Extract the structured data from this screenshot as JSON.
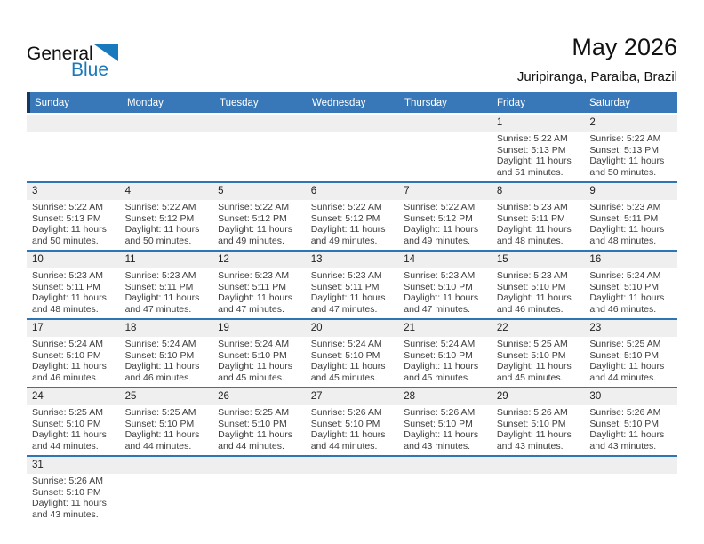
{
  "logo": {
    "part1": "General",
    "part2": "Blue",
    "triangle_color": "#1879bd"
  },
  "header": {
    "title": "May 2026",
    "location": "Juripiranga, Paraiba, Brazil"
  },
  "colors": {
    "weekday_bar": "#3878b8",
    "weekday_bar_accent": "#17375e",
    "week_separator": "#2e75b6",
    "day_number_strip": "#efefef",
    "logo_blue": "#1879bd"
  },
  "weekdays": [
    "Sunday",
    "Monday",
    "Tuesday",
    "Wednesday",
    "Thursday",
    "Friday",
    "Saturday"
  ],
  "weeks": [
    [
      null,
      null,
      null,
      null,
      null,
      {
        "n": "1",
        "lines": [
          "Sunrise: 5:22 AM",
          "Sunset: 5:13 PM",
          "Daylight: 11 hours",
          "and 51 minutes."
        ]
      },
      {
        "n": "2",
        "lines": [
          "Sunrise: 5:22 AM",
          "Sunset: 5:13 PM",
          "Daylight: 11 hours",
          "and 50 minutes."
        ]
      }
    ],
    [
      {
        "n": "3",
        "lines": [
          "Sunrise: 5:22 AM",
          "Sunset: 5:13 PM",
          "Daylight: 11 hours",
          "and 50 minutes."
        ]
      },
      {
        "n": "4",
        "lines": [
          "Sunrise: 5:22 AM",
          "Sunset: 5:12 PM",
          "Daylight: 11 hours",
          "and 50 minutes."
        ]
      },
      {
        "n": "5",
        "lines": [
          "Sunrise: 5:22 AM",
          "Sunset: 5:12 PM",
          "Daylight: 11 hours",
          "and 49 minutes."
        ]
      },
      {
        "n": "6",
        "lines": [
          "Sunrise: 5:22 AM",
          "Sunset: 5:12 PM",
          "Daylight: 11 hours",
          "and 49 minutes."
        ]
      },
      {
        "n": "7",
        "lines": [
          "Sunrise: 5:22 AM",
          "Sunset: 5:12 PM",
          "Daylight: 11 hours",
          "and 49 minutes."
        ]
      },
      {
        "n": "8",
        "lines": [
          "Sunrise: 5:23 AM",
          "Sunset: 5:11 PM",
          "Daylight: 11 hours",
          "and 48 minutes."
        ]
      },
      {
        "n": "9",
        "lines": [
          "Sunrise: 5:23 AM",
          "Sunset: 5:11 PM",
          "Daylight: 11 hours",
          "and 48 minutes."
        ]
      }
    ],
    [
      {
        "n": "10",
        "lines": [
          "Sunrise: 5:23 AM",
          "Sunset: 5:11 PM",
          "Daylight: 11 hours",
          "and 48 minutes."
        ]
      },
      {
        "n": "11",
        "lines": [
          "Sunrise: 5:23 AM",
          "Sunset: 5:11 PM",
          "Daylight: 11 hours",
          "and 47 minutes."
        ]
      },
      {
        "n": "12",
        "lines": [
          "Sunrise: 5:23 AM",
          "Sunset: 5:11 PM",
          "Daylight: 11 hours",
          "and 47 minutes."
        ]
      },
      {
        "n": "13",
        "lines": [
          "Sunrise: 5:23 AM",
          "Sunset: 5:11 PM",
          "Daylight: 11 hours",
          "and 47 minutes."
        ]
      },
      {
        "n": "14",
        "lines": [
          "Sunrise: 5:23 AM",
          "Sunset: 5:10 PM",
          "Daylight: 11 hours",
          "and 47 minutes."
        ]
      },
      {
        "n": "15",
        "lines": [
          "Sunrise: 5:23 AM",
          "Sunset: 5:10 PM",
          "Daylight: 11 hours",
          "and 46 minutes."
        ]
      },
      {
        "n": "16",
        "lines": [
          "Sunrise: 5:24 AM",
          "Sunset: 5:10 PM",
          "Daylight: 11 hours",
          "and 46 minutes."
        ]
      }
    ],
    [
      {
        "n": "17",
        "lines": [
          "Sunrise: 5:24 AM",
          "Sunset: 5:10 PM",
          "Daylight: 11 hours",
          "and 46 minutes."
        ]
      },
      {
        "n": "18",
        "lines": [
          "Sunrise: 5:24 AM",
          "Sunset: 5:10 PM",
          "Daylight: 11 hours",
          "and 46 minutes."
        ]
      },
      {
        "n": "19",
        "lines": [
          "Sunrise: 5:24 AM",
          "Sunset: 5:10 PM",
          "Daylight: 11 hours",
          "and 45 minutes."
        ]
      },
      {
        "n": "20",
        "lines": [
          "Sunrise: 5:24 AM",
          "Sunset: 5:10 PM",
          "Daylight: 11 hours",
          "and 45 minutes."
        ]
      },
      {
        "n": "21",
        "lines": [
          "Sunrise: 5:24 AM",
          "Sunset: 5:10 PM",
          "Daylight: 11 hours",
          "and 45 minutes."
        ]
      },
      {
        "n": "22",
        "lines": [
          "Sunrise: 5:25 AM",
          "Sunset: 5:10 PM",
          "Daylight: 11 hours",
          "and 45 minutes."
        ]
      },
      {
        "n": "23",
        "lines": [
          "Sunrise: 5:25 AM",
          "Sunset: 5:10 PM",
          "Daylight: 11 hours",
          "and 44 minutes."
        ]
      }
    ],
    [
      {
        "n": "24",
        "lines": [
          "Sunrise: 5:25 AM",
          "Sunset: 5:10 PM",
          "Daylight: 11 hours",
          "and 44 minutes."
        ]
      },
      {
        "n": "25",
        "lines": [
          "Sunrise: 5:25 AM",
          "Sunset: 5:10 PM",
          "Daylight: 11 hours",
          "and 44 minutes."
        ]
      },
      {
        "n": "26",
        "lines": [
          "Sunrise: 5:25 AM",
          "Sunset: 5:10 PM",
          "Daylight: 11 hours",
          "and 44 minutes."
        ]
      },
      {
        "n": "27",
        "lines": [
          "Sunrise: 5:26 AM",
          "Sunset: 5:10 PM",
          "Daylight: 11 hours",
          "and 44 minutes."
        ]
      },
      {
        "n": "28",
        "lines": [
          "Sunrise: 5:26 AM",
          "Sunset: 5:10 PM",
          "Daylight: 11 hours",
          "and 43 minutes."
        ]
      },
      {
        "n": "29",
        "lines": [
          "Sunrise: 5:26 AM",
          "Sunset: 5:10 PM",
          "Daylight: 11 hours",
          "and 43 minutes."
        ]
      },
      {
        "n": "30",
        "lines": [
          "Sunrise: 5:26 AM",
          "Sunset: 5:10 PM",
          "Daylight: 11 hours",
          "and 43 minutes."
        ]
      }
    ],
    [
      {
        "n": "31",
        "lines": [
          "Sunrise: 5:26 AM",
          "Sunset: 5:10 PM",
          "Daylight: 11 hours",
          "and 43 minutes."
        ]
      },
      null,
      null,
      null,
      null,
      null,
      null
    ]
  ]
}
